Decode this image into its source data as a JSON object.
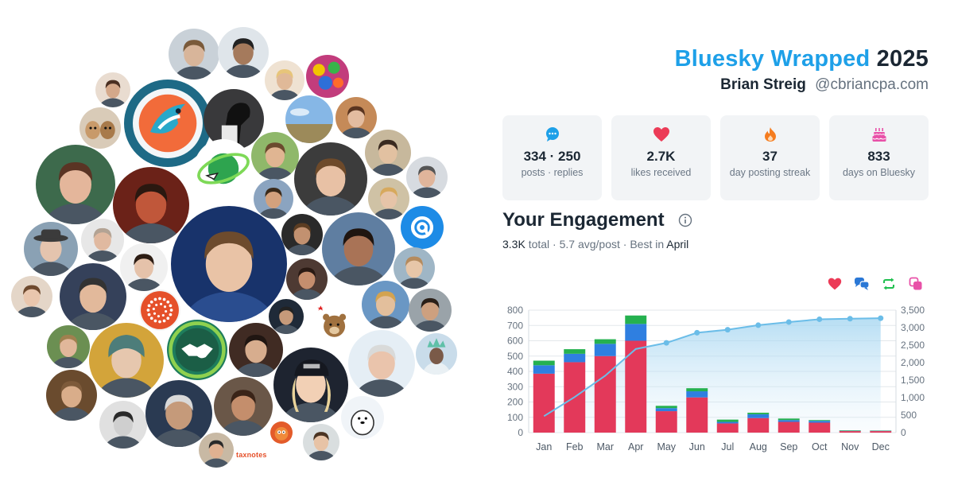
{
  "header": {
    "brand": "Bluesky Wrapped",
    "year": "2025",
    "name": "Brian Streig",
    "handle": "@cbriancpa.com"
  },
  "stats": [
    {
      "icon": "chat-bubble-icon",
      "value": "334 · 250",
      "label": "posts · replies",
      "color": "#1ea0e8"
    },
    {
      "icon": "heart-icon",
      "value": "2.7K",
      "label": "likes received",
      "color": "#ec3b57"
    },
    {
      "icon": "flame-icon",
      "value": "37",
      "label": "day posting streak",
      "color": "#f57c1f"
    },
    {
      "icon": "cake-icon",
      "value": "833",
      "label": "days on Bluesky",
      "color": "#e851a8"
    }
  ],
  "engagement": {
    "title": "Your Engagement",
    "total_value": "3.3K",
    "total_text": "total · 5.7 avg/post · Best in",
    "best_month": "April"
  },
  "legend_icons": [
    {
      "icon": "heart-icon",
      "color": "#ec3b57"
    },
    {
      "icon": "reply-bubbles-icon",
      "color": "#2a78d6"
    },
    {
      "icon": "repost-icon",
      "color": "#1fbf4f"
    },
    {
      "icon": "quote-icon",
      "color": "#e851a8"
    }
  ],
  "avatars_logo_text": "taxnotes",
  "chart_data": {
    "type": "bar",
    "categories": [
      "Jan",
      "Feb",
      "Mar",
      "Apr",
      "May",
      "Jun",
      "Jul",
      "Aug",
      "Sep",
      "Oct",
      "Nov",
      "Dec"
    ],
    "stacked": true,
    "series": [
      {
        "values": [
          385,
          460,
          500,
          600,
          140,
          230,
          60,
          95,
          70,
          65,
          10,
          10
        ],
        "color": "#e3395a"
      },
      {
        "values": [
          55,
          55,
          80,
          110,
          20,
          40,
          10,
          25,
          12,
          12,
          2,
          2
        ],
        "color": "#2f7fe0"
      },
      {
        "values": [
          30,
          30,
          30,
          55,
          15,
          20,
          15,
          10,
          10,
          5,
          3,
          2
        ],
        "color": "#25b14f"
      }
    ],
    "cumulative": {
      "axis": "right",
      "values": [
        470,
        1015,
        1625,
        2390,
        2565,
        2855,
        2940,
        3070,
        3160,
        3240,
        3255,
        3270
      ],
      "color": "#6bbde8"
    },
    "ylim_left": [
      0,
      800
    ],
    "yticks_left": [
      "0",
      "100",
      "200",
      "300",
      "400",
      "500",
      "600",
      "700",
      "800"
    ],
    "ylim_right": [
      0,
      3500
    ],
    "yticks_right": [
      "0",
      "500",
      "1,000",
      "1,500",
      "2,000",
      "2,500",
      "3,000",
      "3,500"
    ],
    "grid": true
  }
}
